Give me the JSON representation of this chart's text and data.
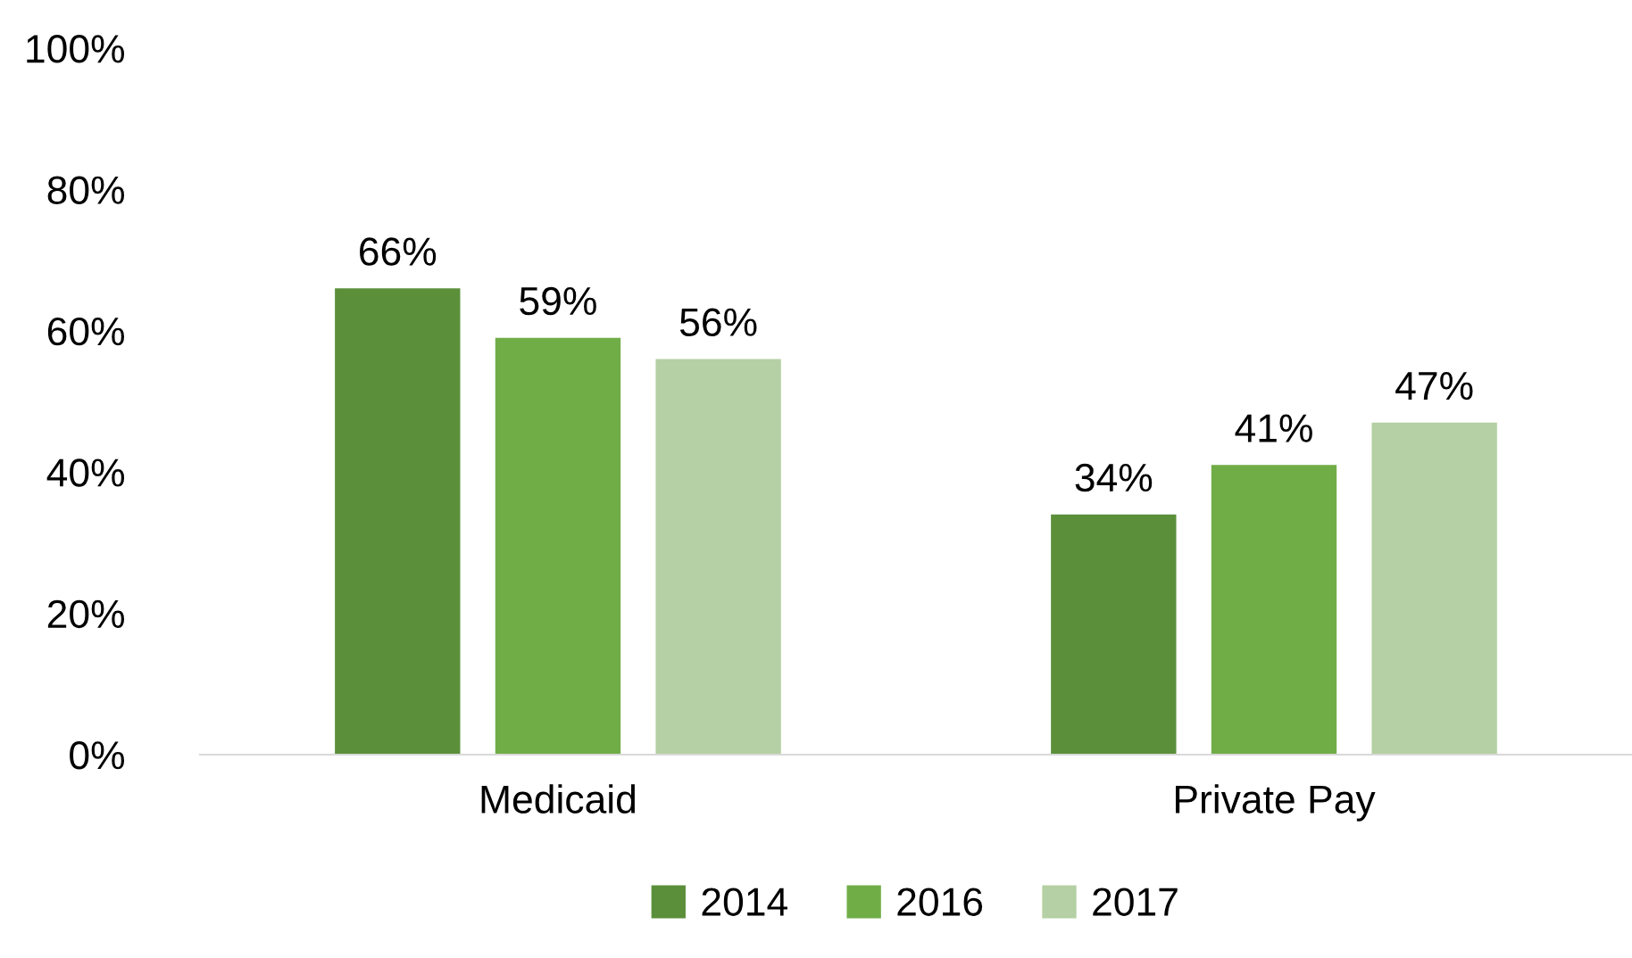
{
  "chart_data": {
    "type": "bar",
    "categories": [
      "Medicaid",
      "Private Pay"
    ],
    "series": [
      {
        "name": "2014",
        "color": "#5b8f3a",
        "values": [
          66,
          34
        ],
        "value_labels": [
          "66%",
          "34%"
        ]
      },
      {
        "name": "2016",
        "color": "#70ad47",
        "values": [
          59,
          41
        ],
        "value_labels": [
          "59%",
          "41%"
        ]
      },
      {
        "name": "2017",
        "color": "#b5d0a4",
        "values": [
          56,
          47
        ],
        "value_labels": [
          "56%",
          "47%"
        ]
      }
    ],
    "ylim": [
      0,
      100
    ],
    "yticks": [
      {
        "value": 0,
        "label": "0%"
      },
      {
        "value": 20,
        "label": "20%"
      },
      {
        "value": 40,
        "label": "40%"
      },
      {
        "value": 60,
        "label": "60%"
      },
      {
        "value": 80,
        "label": "80%"
      },
      {
        "value": 100,
        "label": "100%"
      }
    ],
    "grid": false,
    "legend": "bottom"
  }
}
